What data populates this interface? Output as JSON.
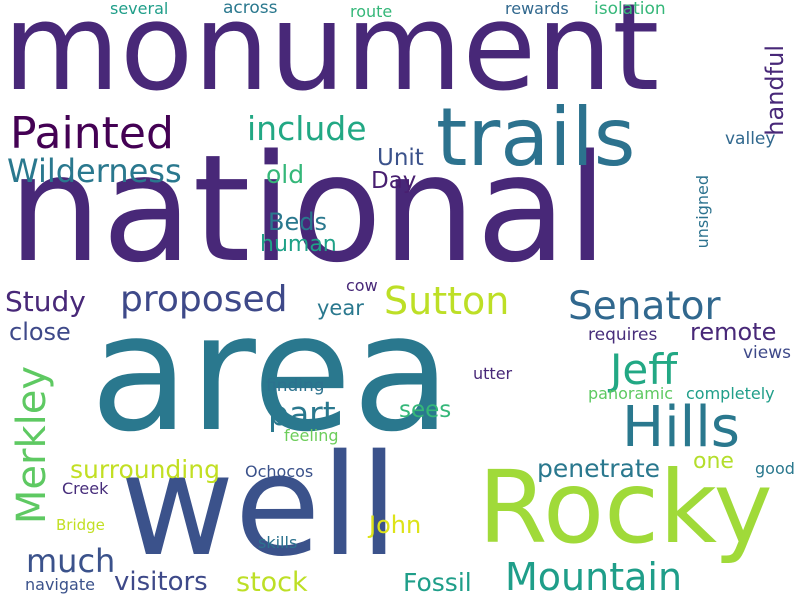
{
  "words": {
    "monument": {
      "text": "monument",
      "color": "#482878"
    },
    "national": {
      "text": "national",
      "color": "#482878"
    },
    "area": {
      "text": "area",
      "color": "#2a788e"
    },
    "well": {
      "text": "well",
      "color": "#3b528b"
    },
    "rocky": {
      "text": "Rocky",
      "color": "#a0da39"
    },
    "trails": {
      "text": "trails",
      "color": "#2c728e"
    },
    "painted": {
      "text": "Painted",
      "color": "#440154"
    },
    "include": {
      "text": "include",
      "color": "#22a884"
    },
    "wilderness": {
      "text": "Wilderness",
      "color": "#2a788e"
    },
    "proposed": {
      "text": "proposed",
      "color": "#3e4989"
    },
    "sutton": {
      "text": "Sutton",
      "color": "#bddf26"
    },
    "senator": {
      "text": "Senator",
      "color": "#31688e"
    },
    "study": {
      "text": "Study",
      "color": "#482878"
    },
    "close": {
      "text": "close",
      "color": "#3e4989"
    },
    "jeff": {
      "text": "Jeff",
      "color": "#22a884"
    },
    "hills": {
      "text": "Hills",
      "color": "#2a788e"
    },
    "merkley": {
      "text": "Merkley",
      "color": "#5ec962"
    },
    "part": {
      "text": "part",
      "color": "#2a788e"
    },
    "much": {
      "text": "much",
      "color": "#3b528b"
    },
    "visitors": {
      "text": "visitors",
      "color": "#3e4989"
    },
    "stock": {
      "text": "stock",
      "color": "#bddf26"
    },
    "mountain": {
      "text": "Mountain",
      "color": "#1f9e89"
    },
    "fossil": {
      "text": "Fossil",
      "color": "#1f9e89"
    },
    "john": {
      "text": "John",
      "color": "#dde318"
    },
    "penetrate": {
      "text": "penetrate",
      "color": "#2a788e"
    },
    "surrounding": {
      "text": "surrounding",
      "color": "#c2df23"
    },
    "remote": {
      "text": "remote",
      "color": "#482878"
    },
    "unit": {
      "text": "Unit",
      "color": "#3b528b"
    },
    "day": {
      "text": "Day",
      "color": "#481f70"
    },
    "old": {
      "text": "old",
      "color": "#35b779"
    },
    "beds": {
      "text": "Beds",
      "color": "#2a788e"
    },
    "human": {
      "text": "human",
      "color": "#1fa187"
    },
    "year": {
      "text": "year",
      "color": "#2a788e"
    },
    "sees": {
      "text": "sees",
      "color": "#35b779"
    },
    "one": {
      "text": "one",
      "color": "#b4de2c"
    },
    "handful": {
      "text": "handful",
      "color": "#482878"
    },
    "unsigned": {
      "text": "unsigned",
      "color": "#2c728e"
    },
    "valley": {
      "text": "valley",
      "color": "#31688e"
    },
    "several": {
      "text": "several",
      "color": "#1f9e89"
    },
    "across": {
      "text": "across",
      "color": "#2a788e"
    },
    "route": {
      "text": "route",
      "color": "#35b779"
    },
    "rewards": {
      "text": "rewards",
      "color": "#31688e"
    },
    "isolation": {
      "text": "isolation",
      "color": "#35b779"
    },
    "cow": {
      "text": "cow",
      "color": "#482878"
    },
    "requires": {
      "text": "requires",
      "color": "#472d7b"
    },
    "views": {
      "text": "views",
      "color": "#3e4989"
    },
    "utter": {
      "text": "utter",
      "color": "#482878"
    },
    "finding": {
      "text": "finding",
      "color": "#2c728e"
    },
    "panoramic": {
      "text": "panoramic",
      "color": "#5ec962"
    },
    "completely": {
      "text": "completely",
      "color": "#1f9e89"
    },
    "feeling": {
      "text": "feeling",
      "color": "#6ccd5a"
    },
    "good": {
      "text": "good",
      "color": "#2a788e"
    },
    "ochocos": {
      "text": "Ochocos",
      "color": "#3b528b"
    },
    "creek": {
      "text": "Creek",
      "color": "#472d7b"
    },
    "bridge": {
      "text": "Bridge",
      "color": "#c2df23"
    },
    "skills": {
      "text": "skills",
      "color": "#2c728e"
    },
    "navigate": {
      "text": "navigate",
      "color": "#3b528b"
    }
  }
}
